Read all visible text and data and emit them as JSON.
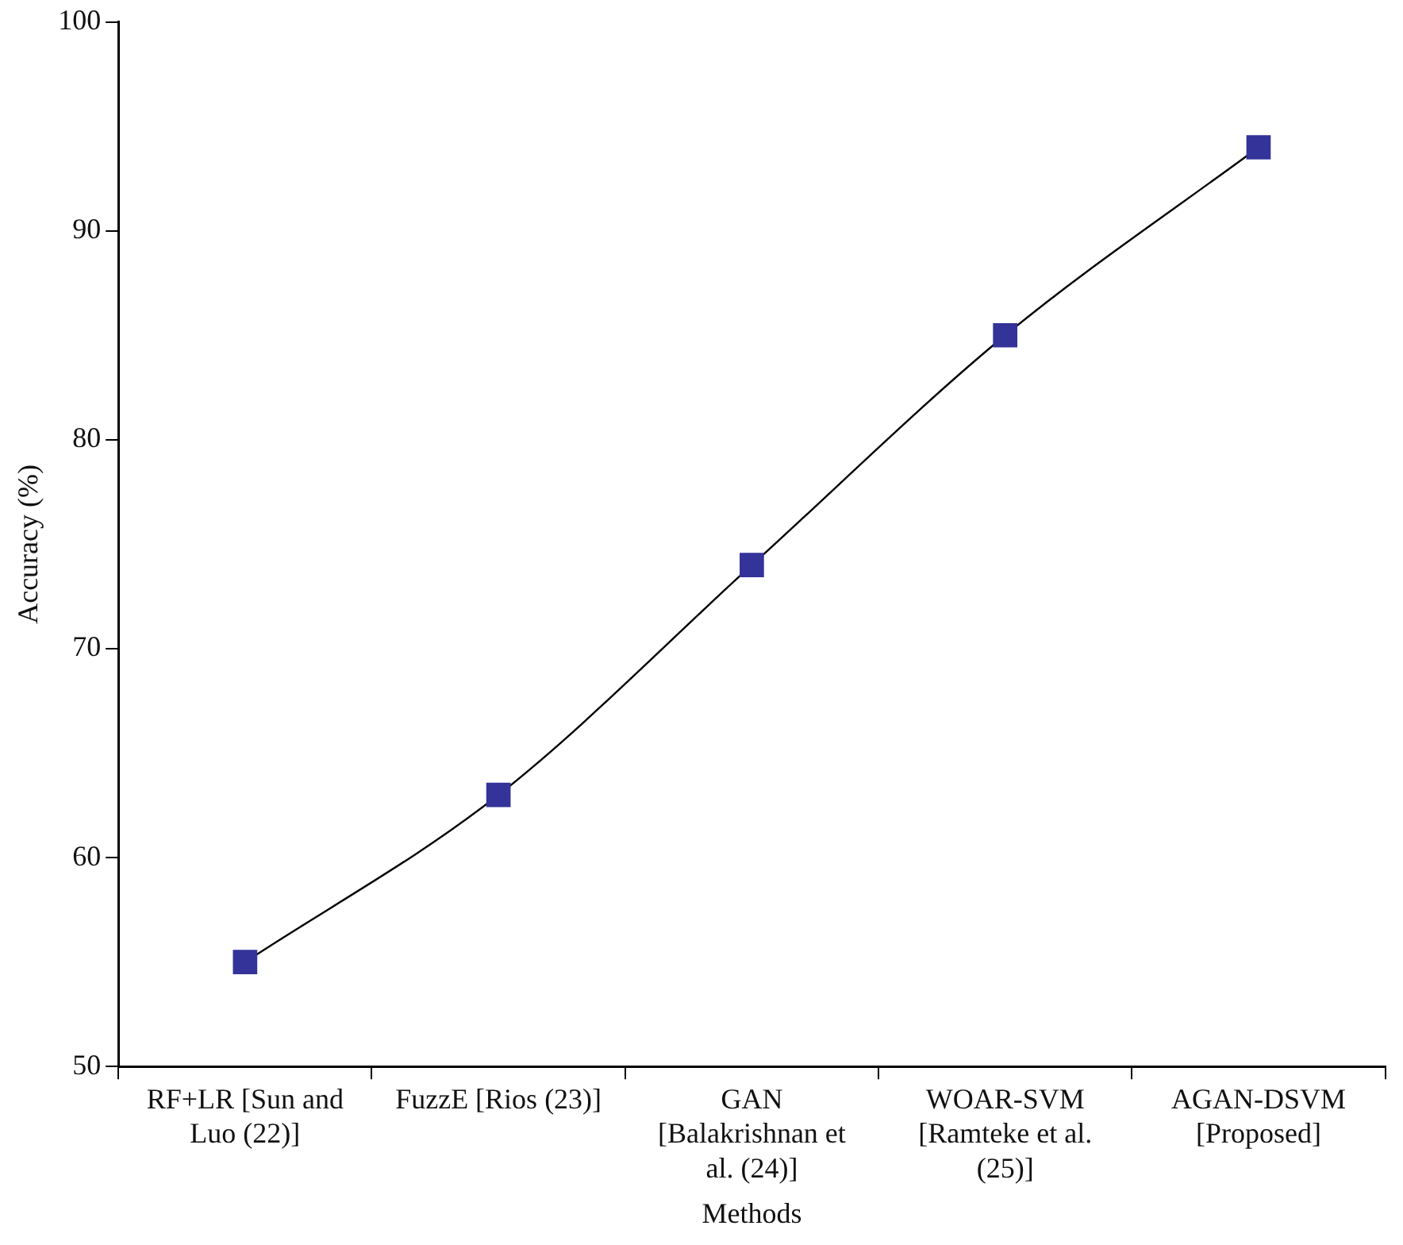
{
  "chart_data": {
    "type": "line",
    "xlabel": "Methods",
    "ylabel": "Accuracy (%)",
    "categories": [
      "RF+LR [Sun and Luo (22)]",
      "FuzzE [Rios (23)]",
      "GAN [Balakrishnan et al. (24)]",
      "WOAR-SVM [Ramteke et al. (25)]",
      "AGAN-DSVM [Proposed]"
    ],
    "series": [
      {
        "color": "#333399",
        "values": [
          55,
          63,
          74,
          85,
          94
        ]
      }
    ],
    "ylim": [
      50,
      100
    ],
    "yticks": [
      50,
      60,
      70,
      80,
      90,
      100
    ],
    "grid": false,
    "legend": false,
    "marker": "square",
    "line_style": "solid"
  }
}
